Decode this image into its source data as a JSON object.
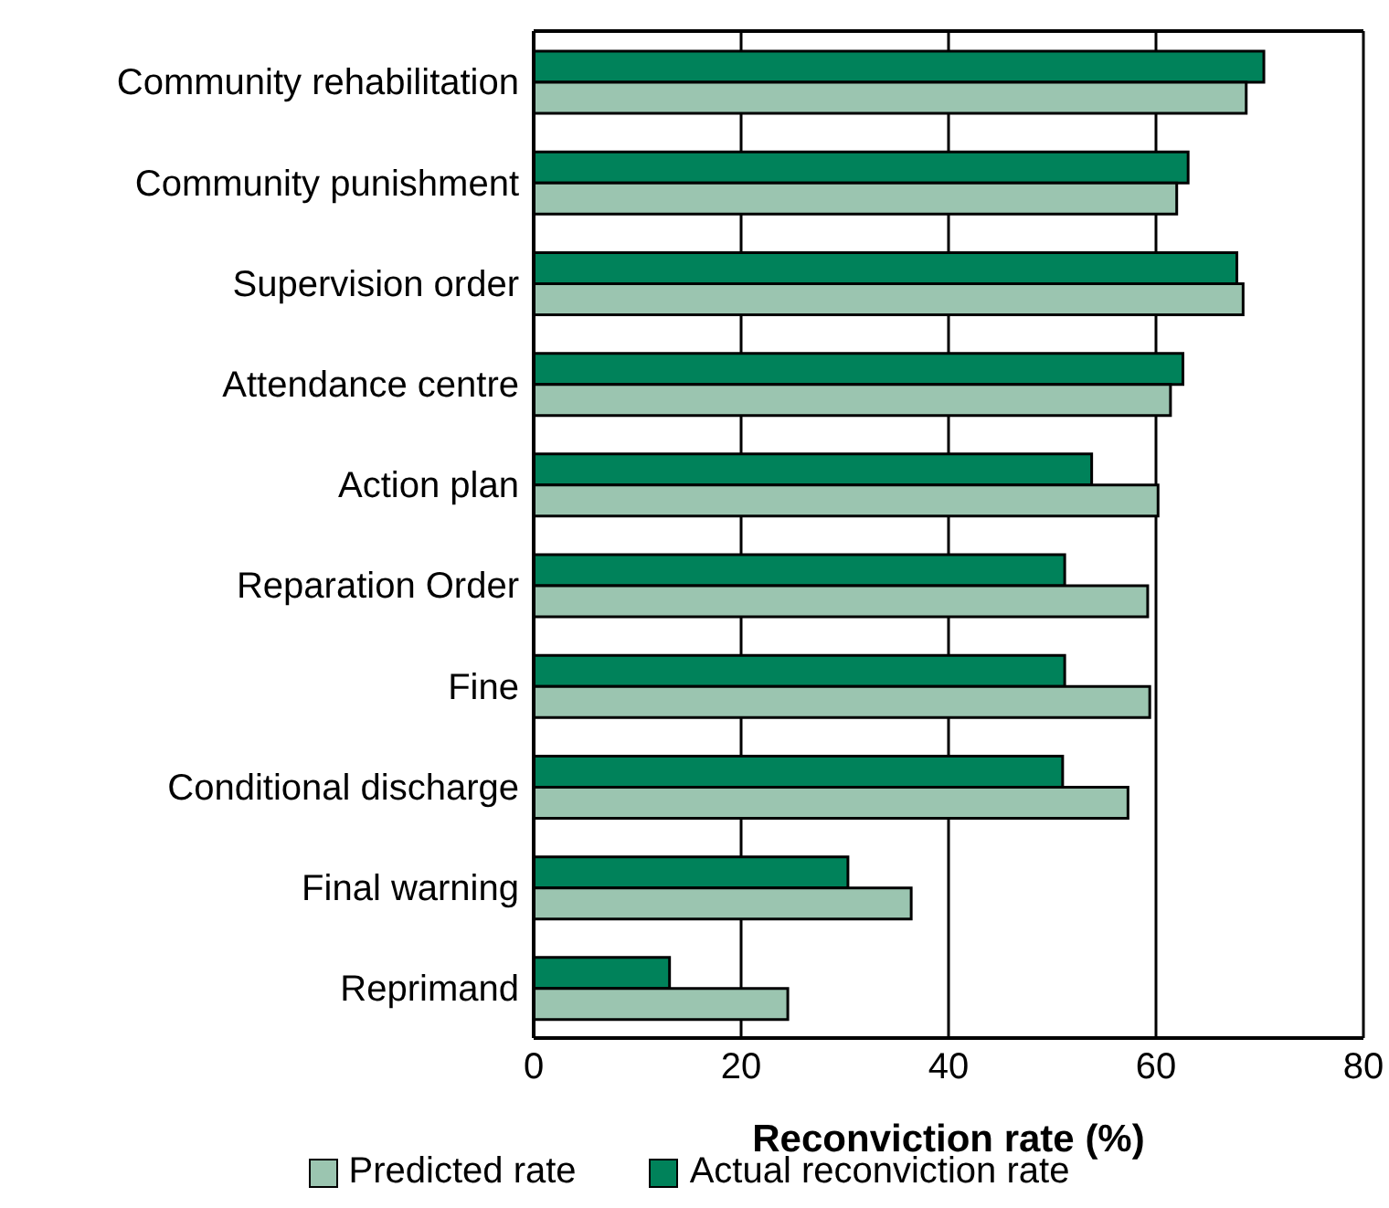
{
  "chart_data": {
    "type": "bar",
    "orientation": "horizontal",
    "xlabel": "Reconviction rate (%)",
    "categories": [
      "Community rehabilitation",
      "Community punishment",
      "Supervision order",
      "Attendance centre",
      "Action plan",
      "Reparation Order",
      "Fine",
      "Conditional discharge",
      "Final warning",
      "Reprimand"
    ],
    "series": [
      {
        "name": "Predicted rate",
        "color": "#9bc5b0",
        "values": [
          68.7,
          62.0,
          68.4,
          61.4,
          60.2,
          59.2,
          59.4,
          57.3,
          36.4,
          24.5
        ]
      },
      {
        "name": "Actual reconviction rate",
        "color": "#00825a",
        "values": [
          70.4,
          63.1,
          67.8,
          62.6,
          53.8,
          51.2,
          51.2,
          51.0,
          30.3,
          13.1
        ]
      }
    ],
    "xlim": [
      0,
      80
    ],
    "xticks": [
      0,
      20,
      40,
      60,
      80
    ],
    "grid": "x",
    "legend": "bottom"
  }
}
